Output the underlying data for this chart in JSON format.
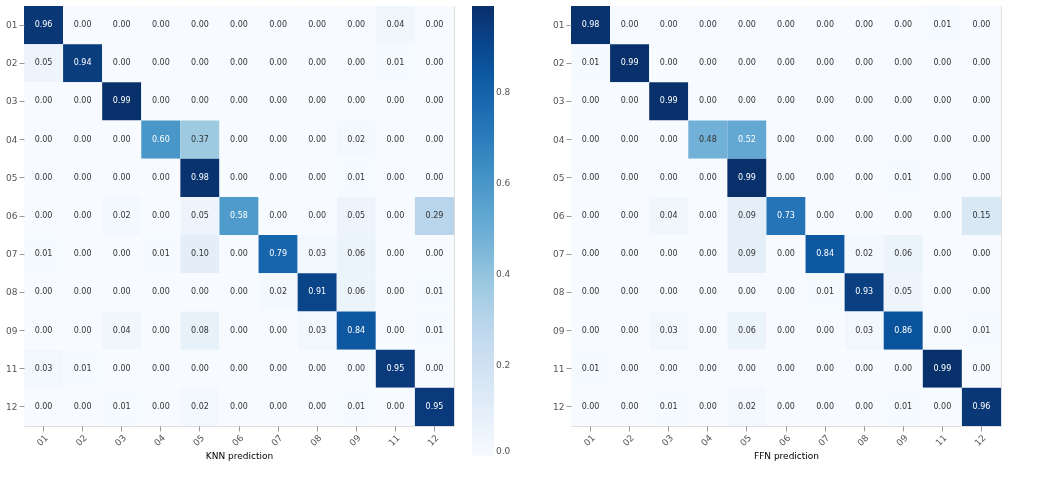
{
  "chart_data": [
    {
      "type": "heatmap",
      "xlabel": "KNN prediction",
      "categories": [
        "01",
        "02",
        "03",
        "04",
        "05",
        "06",
        "07",
        "08",
        "09",
        "11",
        "12"
      ],
      "y_categories": [
        "01",
        "02",
        "03",
        "04",
        "05",
        "06",
        "07",
        "08",
        "09",
        "11",
        "12"
      ],
      "cells": [
        [
          0.96,
          0.0,
          0.0,
          0.0,
          0.0,
          0.0,
          0.0,
          0.0,
          0.0,
          0.04,
          0.0
        ],
        [
          0.05,
          0.94,
          0.0,
          0.0,
          0.0,
          0.0,
          0.0,
          0.0,
          0.0,
          0.01,
          0.0
        ],
        [
          0.0,
          0.0,
          0.99,
          0.0,
          0.0,
          0.0,
          0.0,
          0.0,
          0.0,
          0.0,
          0.0
        ],
        [
          0.0,
          0.0,
          0.0,
          0.6,
          0.37,
          0.0,
          0.0,
          0.0,
          0.02,
          0.0,
          0.0
        ],
        [
          0.0,
          0.0,
          0.0,
          0.0,
          0.98,
          0.0,
          0.0,
          0.0,
          0.01,
          0.0,
          0.0
        ],
        [
          0.0,
          0.0,
          0.02,
          0.0,
          0.05,
          0.58,
          0.0,
          0.0,
          0.05,
          0.0,
          0.29
        ],
        [
          0.01,
          0.0,
          0.0,
          0.01,
          0.1,
          0.0,
          0.79,
          0.03,
          0.06,
          0.0,
          0.0
        ],
        [
          0.0,
          0.0,
          0.0,
          0.0,
          0.0,
          0.0,
          0.02,
          0.91,
          0.06,
          0.0,
          0.01
        ],
        [
          0.0,
          0.0,
          0.04,
          0.0,
          0.08,
          0.0,
          0.0,
          0.03,
          0.84,
          0.0,
          0.01
        ],
        [
          0.03,
          0.01,
          0.0,
          0.0,
          0.0,
          0.0,
          0.0,
          0.0,
          0.0,
          0.95,
          0.0
        ],
        [
          0.0,
          0.0,
          0.01,
          0.0,
          0.02,
          0.0,
          0.0,
          0.0,
          0.01,
          0.0,
          0.95
        ]
      ],
      "cell_labels": [
        [
          "0.96",
          "0.00",
          "0.00",
          "0.00",
          "0.00",
          "0.00",
          "0.00",
          "0.00",
          "0.00",
          "0.04",
          "0.00"
        ],
        [
          "0.05",
          "0.94",
          "0.00",
          "0.00",
          "0.00",
          "0.00",
          "0.00",
          "0.00",
          "0.00",
          "0.01",
          "0.00"
        ],
        [
          "0.00",
          "0.00",
          "0.99",
          "0.00",
          "0.00",
          "0.00",
          "0.00",
          "0.00",
          "0.00",
          "0.00",
          "0.00"
        ],
        [
          "0.00",
          "0.00",
          "0.00",
          "0.60",
          "0.37",
          "0.00",
          "0.00",
          "0.00",
          "0.02",
          "0.00",
          "0.00"
        ],
        [
          "0.00",
          "0.00",
          "0.00",
          "0.00",
          "0.98",
          "0.00",
          "0.00",
          "0.00",
          "0.01",
          "0.00",
          "0.00"
        ],
        [
          "0.00",
          "0.00",
          "0.02",
          "0.00",
          "0.05",
          "0.58",
          "0.00",
          "0.00",
          "0.05",
          "0.00",
          "0.29"
        ],
        [
          "0.01",
          "0.00",
          "0.00",
          "0.01",
          "0.10",
          "0.00",
          "0.79",
          "0.03",
          "0.06",
          "0.00",
          "0.00"
        ],
        [
          "0.00",
          "0.00",
          "0.00",
          "0.00",
          "0.00",
          "0.00",
          "0.02",
          "0.91",
          "0.06",
          "0.00",
          "0.01"
        ],
        [
          "0.00",
          "0.00",
          "0.04",
          "0.00",
          "0.08",
          "0.00",
          "0.00",
          "0.03",
          "0.84",
          "0.00",
          "0.01"
        ],
        [
          "0.03",
          "0.01",
          "0.00",
          "0.00",
          "0.00",
          "0.00",
          "0.00",
          "0.00",
          "0.00",
          "0.95",
          "0.00"
        ],
        [
          "0.00",
          "0.00",
          "0.01",
          "0.00",
          "0.02",
          "0.00",
          "0.00",
          "0.00",
          "0.01",
          "0.00",
          "0.95"
        ]
      ],
      "clim": [
        0,
        0.99
      ],
      "cticks": [
        {
          "value": 0,
          "label": "0.0"
        },
        {
          "value": 0.2,
          "label": "0.2"
        },
        {
          "value": 0.4,
          "label": "0.4"
        },
        {
          "value": 0.6,
          "label": "0.6"
        },
        {
          "value": 0.8,
          "label": "0.8"
        }
      ],
      "grid": false
    },
    {
      "type": "heatmap",
      "xlabel": "FFN prediction",
      "categories": [
        "01",
        "02",
        "03",
        "04",
        "05",
        "06",
        "07",
        "08",
        "09",
        "11",
        "12"
      ],
      "y_categories": [
        "01",
        "02",
        "03",
        "04",
        "05",
        "06",
        "07",
        "08",
        "09",
        "11",
        "12"
      ],
      "cells": [
        [
          0.98,
          0.0,
          0.0,
          0.0,
          0.0,
          0.0,
          0.0,
          0.0,
          0.0,
          0.01,
          0.0
        ],
        [
          0.01,
          0.99,
          0.0,
          0.0,
          0.0,
          0.0,
          0.0,
          0.0,
          0.0,
          0.0,
          0.0
        ],
        [
          0.0,
          0.0,
          0.99,
          0.0,
          0.0,
          0.0,
          0.0,
          0.0,
          0.0,
          0.0,
          0.0
        ],
        [
          0.0,
          0.0,
          0.0,
          0.48,
          0.52,
          0.0,
          0.0,
          0.0,
          0.0,
          0.0,
          0.0
        ],
        [
          0.0,
          0.0,
          0.0,
          0.0,
          0.99,
          0.0,
          0.0,
          0.0,
          0.01,
          0.0,
          0.0
        ],
        [
          0.0,
          0.0,
          0.04,
          0.0,
          0.09,
          0.73,
          0.0,
          0.0,
          0.0,
          0.0,
          0.15
        ],
        [
          0.0,
          0.0,
          0.0,
          0.0,
          0.09,
          0.0,
          0.84,
          0.02,
          0.06,
          0.0,
          0.0
        ],
        [
          0.0,
          0.0,
          0.0,
          0.0,
          0.0,
          0.0,
          0.01,
          0.93,
          0.05,
          0.0,
          0.0
        ],
        [
          0.0,
          0.0,
          0.03,
          0.0,
          0.06,
          0.0,
          0.0,
          0.03,
          0.86,
          0.0,
          0.01
        ],
        [
          0.01,
          0.0,
          0.0,
          0.0,
          0.0,
          0.0,
          0.0,
          0.0,
          0.0,
          0.99,
          0.0
        ],
        [
          0.0,
          0.0,
          0.01,
          0.0,
          0.02,
          0.0,
          0.0,
          0.0,
          0.01,
          0.0,
          0.96
        ]
      ],
      "cell_labels": [
        [
          "0.98",
          "0.00",
          "0.00",
          "0.00",
          "0.00",
          "0.00",
          "0.00",
          "0.00",
          "0.00",
          "0.01",
          "0.00"
        ],
        [
          "0.01",
          "0.99",
          "0.00",
          "0.00",
          "0.00",
          "0.00",
          "0.00",
          "0.00",
          "0.00",
          "0.00",
          "0.00"
        ],
        [
          "0.00",
          "0.00",
          "0.99",
          "0.00",
          "0.00",
          "0.00",
          "0.00",
          "0.00",
          "0.00",
          "0.00",
          "0.00"
        ],
        [
          "0.00",
          "0.00",
          "0.00",
          "0.48",
          "0.52",
          "0.00",
          "0.00",
          "0.00",
          "0.00",
          "0.00",
          "0.00"
        ],
        [
          "0.00",
          "0.00",
          "0.00",
          "0.00",
          "0.99",
          "0.00",
          "0.00",
          "0.00",
          "0.01",
          "0.00",
          "0.00"
        ],
        [
          "0.00",
          "0.00",
          "0.04",
          "0.00",
          "0.09",
          "0.73",
          "0.00",
          "0.00",
          "0.00",
          "0.00",
          "0.15"
        ],
        [
          "0.00",
          "0.00",
          "0.00",
          "0.00",
          "0.09",
          "0.00",
          "0.84",
          "0.02",
          "0.06",
          "0.00",
          "0.00"
        ],
        [
          "0.00",
          "0.00",
          "0.00",
          "0.00",
          "0.00",
          "0.00",
          "0.01",
          "0.93",
          "0.05",
          "0.00",
          "0.00"
        ],
        [
          "0.00",
          "0.00",
          "0.03",
          "0.00",
          "0.06",
          "0.00",
          "0.00",
          "0.03",
          "0.86",
          "0.00",
          "0.01"
        ],
        [
          "0.01",
          "0.00",
          "0.00",
          "0.00",
          "0.00",
          "0.00",
          "0.00",
          "0.00",
          "0.00",
          "0.99",
          "0.00"
        ],
        [
          "0.00",
          "0.00",
          "0.01",
          "0.00",
          "0.02",
          "0.00",
          "0.00",
          "0.00",
          "0.01",
          "0.00",
          "0.96"
        ]
      ],
      "grid": false
    }
  ]
}
